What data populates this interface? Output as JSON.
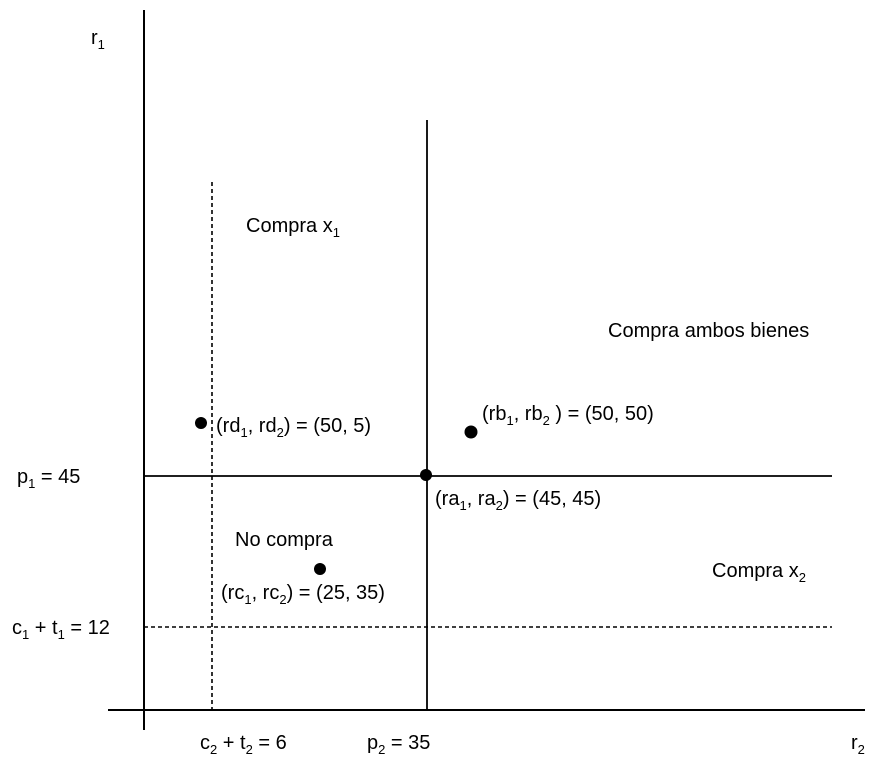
{
  "axes": {
    "y_label": {
      "base": "r",
      "sub": "1"
    },
    "x_label": {
      "base": "r",
      "sub": "2"
    }
  },
  "thresholds": {
    "p1": {
      "parts": [
        [
          "p",
          "1"
        ],
        [
          " = 45",
          ""
        ]
      ]
    },
    "p2": {
      "parts": [
        [
          "p",
          "2"
        ],
        [
          "  = 35",
          ""
        ]
      ]
    },
    "c1t1": {
      "parts": [
        [
          "c",
          "1"
        ],
        [
          "  + t",
          ""
        ],
        [
          "",
          "1"
        ],
        [
          " = 12",
          ""
        ]
      ]
    },
    "c2t2": {
      "parts": [
        [
          "c",
          "2"
        ],
        [
          "  + t",
          ""
        ],
        [
          "",
          "2"
        ],
        [
          " = 6",
          ""
        ]
      ]
    }
  },
  "regions": {
    "buy_x1": {
      "parts": [
        [
          "Compra x",
          "1"
        ]
      ]
    },
    "buy_both": {
      "parts": [
        [
          "Compra ambos bienes",
          ""
        ]
      ]
    },
    "no_buy": {
      "parts": [
        [
          "No compra",
          ""
        ]
      ]
    },
    "buy_x2": {
      "parts": [
        [
          "Compra x",
          "2"
        ]
      ]
    }
  },
  "points": {
    "d": {
      "parts": [
        [
          "(rd",
          "1"
        ],
        [
          ", rd",
          "2"
        ],
        [
          ") = (50, 5)",
          ""
        ]
      ]
    },
    "b": {
      "parts": [
        [
          "(rb",
          "1"
        ],
        [
          ", rb",
          "2"
        ],
        [
          " ) = (50, 50)",
          ""
        ]
      ]
    },
    "a": {
      "parts": [
        [
          "(ra",
          "1"
        ],
        [
          ", ra",
          "2"
        ],
        [
          ") = (45, 45)",
          ""
        ]
      ]
    },
    "c": {
      "parts": [
        [
          "(rc",
          "1"
        ],
        [
          ", rc",
          "2"
        ],
        [
          ") = (25, 35)",
          ""
        ]
      ]
    }
  },
  "colors": {
    "ink": "#000000",
    "background": "#ffffff"
  }
}
